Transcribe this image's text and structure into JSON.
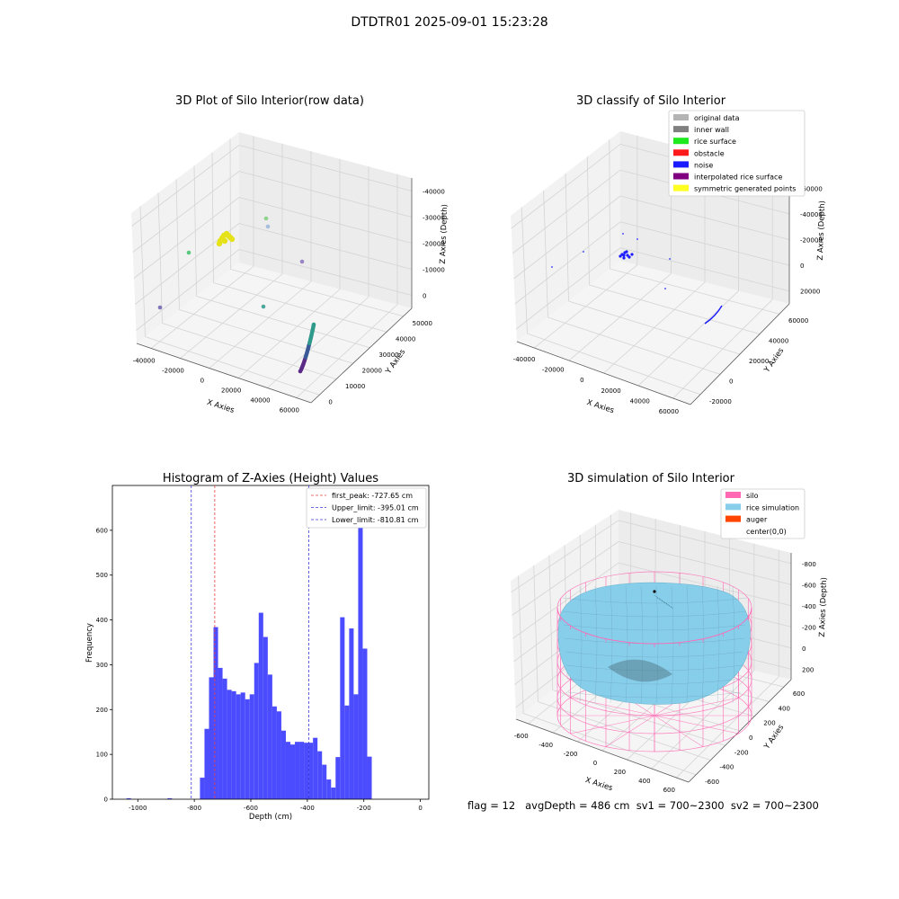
{
  "suptitle": "DTDTR01 2025-09-01 15:23:28",
  "footer": "flag = 12   avgDepth = 486 cm  sv1 = 700~2300  sv2 = 700~2300",
  "colors": {
    "hist_bar": "#4c4cff",
    "first_peak": "#e8413f",
    "limit": "#3a3ad8",
    "silo": "#ff69b4",
    "rice": "#87ceeb",
    "auger": "#ff4500"
  },
  "chart_data": [
    {
      "type": "scatter3d",
      "title": "3D Plot of Silo Interior(row data)",
      "xlabel": "X Axies",
      "ylabel": "Y Axies",
      "zlabel": "Z Axies (Depth)",
      "x_ticks": [
        "-40000",
        "-20000",
        "0",
        "20000",
        "40000",
        "60000"
      ],
      "y_ticks": [
        "0",
        "10000",
        "20000",
        "30000",
        "40000",
        "50000"
      ],
      "z_ticks": [
        "0",
        "-10000",
        "-20000",
        "-30000",
        "-40000"
      ],
      "grid": true
    },
    {
      "type": "scatter3d",
      "title": "3D classify of Silo Interior",
      "xlabel": "X Axies",
      "ylabel": "Y Axies",
      "zlabel": "Z Axies (Depth)",
      "x_ticks": [
        "-40000",
        "-20000",
        "0",
        "20000",
        "40000",
        "60000"
      ],
      "y_ticks": [
        "-20000",
        "0",
        "20000",
        "40000",
        "60000"
      ],
      "z_ticks": [
        "20000",
        "0",
        "-20000",
        "-40000",
        "-60000"
      ],
      "legend_position": "top-right",
      "legend": [
        {
          "label": "original data",
          "color": "#b4b4b4"
        },
        {
          "label": "inner wall",
          "color": "#808080"
        },
        {
          "label": "rice surface",
          "color": "#1ee81e"
        },
        {
          "label": "obstacle",
          "color": "#ff1a1a"
        },
        {
          "label": "noise",
          "color": "#1a1aff"
        },
        {
          "label": "interpolated rice surface",
          "color": "#800080"
        },
        {
          "label": "symmetric generated points",
          "color": "#ffff22"
        }
      ],
      "grid": true
    },
    {
      "type": "bar",
      "title": "Histogram of Z-Axies (Height) Values",
      "xlabel": "Depth (cm)",
      "ylabel": "Frequency",
      "xlim": [
        -1090,
        30
      ],
      "ylim": [
        0,
        700
      ],
      "x_ticks": [
        -1000,
        -800,
        -600,
        -400,
        -200,
        0
      ],
      "y_ticks": [
        0,
        100,
        200,
        300,
        400,
        500,
        600
      ],
      "bin_width": 16,
      "bins": [
        {
          "x": -1040,
          "y": 2
        },
        {
          "x": -895,
          "y": 2
        },
        {
          "x": -780,
          "y": 48
        },
        {
          "x": -764,
          "y": 157
        },
        {
          "x": -748,
          "y": 272
        },
        {
          "x": -732,
          "y": 384
        },
        {
          "x": -716,
          "y": 293
        },
        {
          "x": -700,
          "y": 269
        },
        {
          "x": -684,
          "y": 244
        },
        {
          "x": -668,
          "y": 241
        },
        {
          "x": -652,
          "y": 234
        },
        {
          "x": -636,
          "y": 238
        },
        {
          "x": -620,
          "y": 223
        },
        {
          "x": -604,
          "y": 234
        },
        {
          "x": -588,
          "y": 304
        },
        {
          "x": -572,
          "y": 416
        },
        {
          "x": -556,
          "y": 362
        },
        {
          "x": -540,
          "y": 278
        },
        {
          "x": -524,
          "y": 207
        },
        {
          "x": -508,
          "y": 196
        },
        {
          "x": -492,
          "y": 153
        },
        {
          "x": -476,
          "y": 128
        },
        {
          "x": -460,
          "y": 122
        },
        {
          "x": -444,
          "y": 128
        },
        {
          "x": -428,
          "y": 128
        },
        {
          "x": -412,
          "y": 126
        },
        {
          "x": -396,
          "y": 126
        },
        {
          "x": -380,
          "y": 137
        },
        {
          "x": -364,
          "y": 107
        },
        {
          "x": -348,
          "y": 77
        },
        {
          "x": -332,
          "y": 44
        },
        {
          "x": -316,
          "y": 26
        },
        {
          "x": -300,
          "y": 94
        },
        {
          "x": -284,
          "y": 406
        },
        {
          "x": -268,
          "y": 209
        },
        {
          "x": -252,
          "y": 381
        },
        {
          "x": -236,
          "y": 234
        },
        {
          "x": -220,
          "y": 660
        },
        {
          "x": -204,
          "y": 336
        },
        {
          "x": -188,
          "y": 95
        }
      ],
      "vlines": [
        {
          "label": "first_peak: -727.65 cm",
          "x": -727.65,
          "kind": "first_peak"
        },
        {
          "label": "Upper_limit: -395.01 cm",
          "x": -395.01,
          "kind": "limit"
        },
        {
          "label": "Lower_limit: -810.81 cm",
          "x": -810.81,
          "kind": "limit"
        }
      ],
      "legend_position": "top-right"
    },
    {
      "type": "surface3d",
      "title": "3D simulation of Silo Interior",
      "xlabel": "X Axies",
      "ylabel": "Y Axies",
      "zlabel": "Z Axies (Depth)",
      "x_ticks": [
        "-600",
        "-400",
        "-200",
        "0",
        "200",
        "400",
        "600"
      ],
      "y_ticks": [
        "-600",
        "-400",
        "-200",
        "0",
        "200",
        "400",
        "600"
      ],
      "z_ticks": [
        "200",
        "0",
        "-200",
        "-400",
        "-600",
        "-800"
      ],
      "legend_position": "top-right",
      "legend": [
        {
          "label": "silo",
          "color": "#ff69b4"
        },
        {
          "label": "rice simulation",
          "color": "#87ceeb"
        },
        {
          "label": "auger",
          "color": "#ff4500"
        },
        {
          "label": "center(0,0)",
          "color": null
        }
      ],
      "grid": true
    }
  ]
}
